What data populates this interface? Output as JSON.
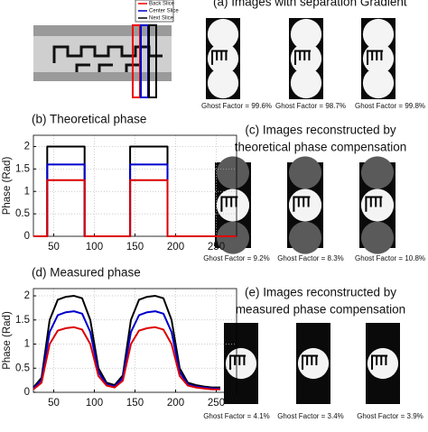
{
  "slice_legend": [
    "Back Slice",
    "Center Slice",
    "Next Slice"
  ],
  "panel_a": {
    "title": "(a) Images with separation Gradient",
    "ghost_factors": [
      "Ghost Factor = 99.6%",
      "Ghost Factor = 98.7%",
      "Ghost Factor = 99.8%"
    ]
  },
  "panel_c": {
    "title_lines": [
      "(c) Images reconstructed by",
      "theoretical phase compensation"
    ],
    "ghost_factors": [
      "Ghost Factor = 9.2%",
      "Ghost Factor = 8.3%",
      "Ghost Factor = 10.8%"
    ]
  },
  "panel_e": {
    "title_lines": [
      "(e) Images reconstructed by",
      "measured phase compensation"
    ],
    "ghost_factors": [
      "Ghost Factor = 4.1%",
      "Ghost Factor = 3.4%",
      "Ghost Factor = 3.9%"
    ]
  },
  "chart_data": [
    {
      "type": "line",
      "title": "(b) Theoretical phase",
      "ylabel": "Phase (Rad)",
      "x": [
        25,
        42,
        42,
        88,
        88,
        144,
        144,
        190,
        190,
        275
      ],
      "series": [
        {
          "name": "Next Slice",
          "color": "#000000",
          "values": [
            0,
            0,
            2,
            2,
            0,
            0,
            2,
            2,
            0,
            0
          ]
        },
        {
          "name": "Center Slice",
          "color": "#0000cc",
          "values": [
            0,
            0,
            1.6,
            1.6,
            0,
            0,
            1.6,
            1.6,
            0,
            0
          ]
        },
        {
          "name": "Back Slice",
          "color": "#dd0000",
          "values": [
            0,
            0,
            1.25,
            1.25,
            0,
            0,
            1.25,
            1.25,
            0,
            0
          ]
        }
      ],
      "xlim": [
        25,
        275
      ],
      "xticks": [
        50,
        100,
        150,
        200,
        250
      ],
      "ylim": [
        0,
        2.25
      ],
      "yticks": [
        0,
        0.5,
        1,
        1.5,
        2
      ],
      "grid": true
    },
    {
      "type": "line",
      "title": "(d) Measured phase",
      "ylabel": "Phase (Rad)",
      "x": [
        25,
        35,
        45,
        55,
        65,
        75,
        85,
        95,
        105,
        115,
        125,
        135,
        145,
        155,
        165,
        175,
        185,
        195,
        205,
        215,
        225,
        235,
        245,
        255
      ],
      "series": [
        {
          "name": "Next Slice",
          "color": "#000000",
          "values": [
            0.1,
            0.3,
            1.5,
            1.92,
            1.98,
            2.0,
            1.95,
            1.5,
            0.5,
            0.2,
            0.15,
            0.35,
            1.5,
            1.92,
            1.98,
            2.0,
            1.95,
            1.5,
            0.5,
            0.2,
            0.15,
            0.12,
            0.1,
            0.1
          ]
        },
        {
          "name": "Center Slice",
          "color": "#0000cc",
          "values": [
            0.08,
            0.25,
            1.25,
            1.6,
            1.66,
            1.68,
            1.63,
            1.25,
            0.42,
            0.17,
            0.12,
            0.3,
            1.25,
            1.6,
            1.66,
            1.68,
            1.63,
            1.25,
            0.42,
            0.17,
            0.12,
            0.1,
            0.08,
            0.08
          ]
        },
        {
          "name": "Back Slice",
          "color": "#dd0000",
          "values": [
            0.06,
            0.2,
            1.0,
            1.28,
            1.33,
            1.35,
            1.3,
            1.0,
            0.34,
            0.14,
            0.1,
            0.24,
            1.0,
            1.28,
            1.33,
            1.35,
            1.3,
            1.0,
            0.34,
            0.14,
            0.1,
            0.08,
            0.06,
            0.06
          ]
        }
      ],
      "xlim": [
        25,
        275
      ],
      "xticks": [
        50,
        100,
        150,
        200,
        250
      ],
      "ylim": [
        0,
        2.15
      ],
      "yticks": [
        0,
        0.5,
        1,
        1.5,
        2
      ],
      "grid": true
    }
  ]
}
